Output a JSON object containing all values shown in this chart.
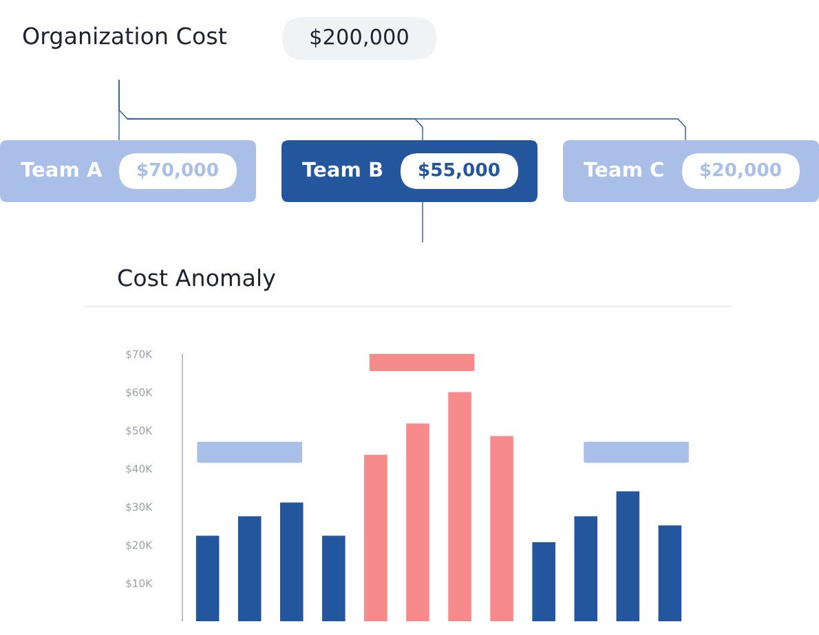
{
  "chart_data": [
    {
      "type": "other",
      "title": "Organization Cost",
      "annotations": [
        "$200,000",
        "Team A",
        "$70,000",
        "Team B",
        "$55,000",
        "Team C",
        "$20,000"
      ],
      "colors": [
        "#a9bfe8",
        "#23569c",
        "#a9bfe8"
      ]
    },
    {
      "type": "bar",
      "title": "Cost Anomaly",
      "categories": [
        null,
        null,
        null,
        null,
        null,
        null,
        null,
        null,
        null,
        null,
        null,
        null
      ],
      "values": [
        22400,
        27500,
        31100,
        22400,
        43600,
        51800,
        60000,
        48500,
        20700,
        27500,
        34000,
        25100
      ],
      "colors": [
        "#23569c",
        "#23569c",
        "#23569c",
        "#23569c",
        "#f78a8a",
        "#f78a8a",
        "#f78a8a",
        "#f78a8a",
        "#23569c",
        "#23569c",
        "#23569c",
        "#23569c"
      ],
      "ylim": [
        0,
        70000
      ],
      "yticks": [
        {
          "value": 10000,
          "label": "$10K"
        },
        {
          "value": 20000,
          "label": "$20K"
        },
        {
          "value": 30000,
          "label": "$30K"
        },
        {
          "value": 40000,
          "label": "$40K"
        },
        {
          "value": 50000,
          "label": "$50K"
        },
        {
          "value": 60000,
          "label": "$60K"
        },
        {
          "value": 70000,
          "label": "$70K"
        }
      ],
      "tick_labels": "y",
      "grid": false
    }
  ]
}
